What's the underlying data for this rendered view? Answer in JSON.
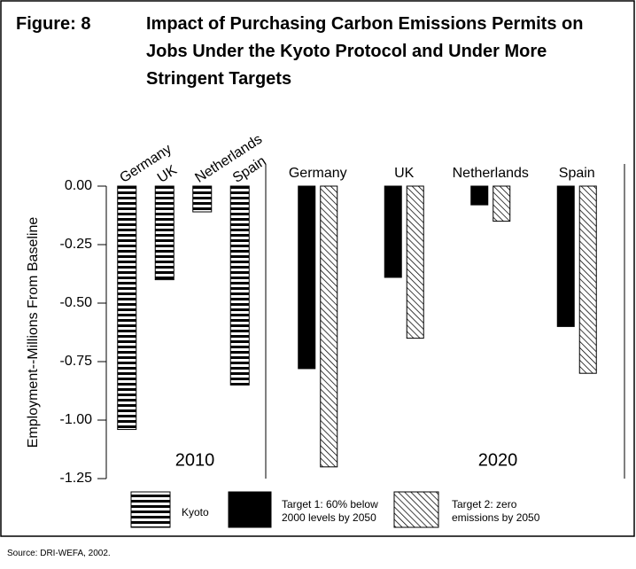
{
  "chart_data": {
    "type": "bar",
    "figure_label": "Figure: 8",
    "title": "Impact of Purchasing Carbon Emissions Permits on Jobs Under the Kyoto Protocol and Under More Stringent Targets",
    "ylabel": "Employment--Millions From Baseline",
    "ylim": [
      -1.25,
      0
    ],
    "yticks": [
      {
        "value": 0,
        "label": "0.00"
      },
      -0.25,
      {
        "value": -0.5,
        "label": "-0.50"
      },
      -0.75,
      {
        "value": -1,
        "label": "-1.00"
      },
      -1.25
    ],
    "panels": [
      {
        "label": "2010",
        "categories": [
          "Germany",
          "UK",
          "Netherlands",
          "Spain"
        ],
        "series": [
          {
            "name": "Kyoto",
            "color": "#000000",
            "fill_style": "horizontal-stripes",
            "values": [
              -1.04,
              -0.4,
              -0.11,
              -0.85
            ]
          }
        ]
      },
      {
        "label": "2020",
        "categories": [
          "Germany",
          "UK",
          "Netherlands",
          "Spain"
        ],
        "series": [
          {
            "name": "Target 1: 60% below 2000 levels by 2050",
            "color": "#000000",
            "fill_style": "solid",
            "values": [
              -0.78,
              -0.39,
              -0.08,
              -0.6
            ]
          },
          {
            "name": "Target 2: zero emissions by 2050",
            "color": "#000000",
            "fill_style": "diagonal-hatch",
            "values": [
              -1.2,
              -0.65,
              -0.15,
              -0.8
            ]
          }
        ]
      }
    ],
    "source": "Source: DRI-WEFA, 2002."
  }
}
